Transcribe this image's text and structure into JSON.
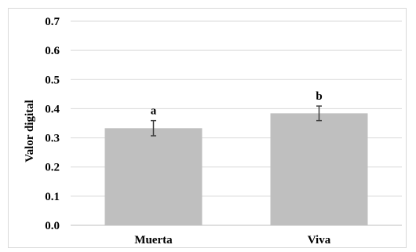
{
  "chart_data": {
    "type": "bar",
    "categories": [
      "Muerta",
      "Viva"
    ],
    "values": [
      0.333,
      0.384
    ],
    "errors": [
      0.026,
      0.025
    ],
    "significance": [
      "a",
      "b"
    ],
    "ylabel": "Valor digital",
    "xlabel": "",
    "ylim": [
      0,
      0.7
    ],
    "yticks": [
      "0.0",
      "0.1",
      "0.2",
      "0.3",
      "0.4",
      "0.5",
      "0.6",
      "0.7"
    ],
    "grid": true,
    "bar_color": "#bfbfbf",
    "gridline_color": "#d9d9d9",
    "error_color": "#404040"
  }
}
